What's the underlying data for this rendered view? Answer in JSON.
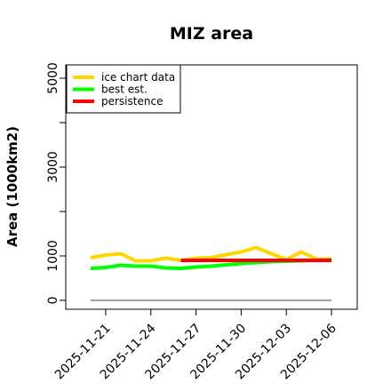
{
  "chart_data": {
    "type": "line",
    "title": "MIZ area",
    "xlabel": "",
    "ylabel": "Area (1000km2)",
    "x": [
      "2025-11-20",
      "2025-11-21",
      "2025-11-22",
      "2025-11-23",
      "2025-11-24",
      "2025-11-25",
      "2025-11-26",
      "2025-11-27",
      "2025-11-28",
      "2025-11-29",
      "2025-11-30",
      "2025-12-01",
      "2025-12-02",
      "2025-12-03",
      "2025-12-04",
      "2025-12-05",
      "2025-12-06"
    ],
    "series": [
      {
        "name": "ice chart data",
        "color": "#FFD700",
        "values": [
          960,
          1020,
          1050,
          890,
          890,
          950,
          900,
          950,
          960,
          1030,
          1090,
          1190,
          1050,
          920,
          1090,
          930,
          930
        ]
      },
      {
        "name": "best est.",
        "color": "#00FF00",
        "values": [
          720,
          740,
          790,
          770,
          770,
          730,
          720,
          750,
          770,
          800,
          830,
          850,
          870,
          880,
          890,
          900,
          910
        ]
      },
      {
        "name": "persistence",
        "color": "#FF0000",
        "values": [
          null,
          null,
          null,
          null,
          null,
          null,
          900,
          900,
          900,
          900,
          900,
          900,
          900,
          900,
          900,
          900,
          900
        ]
      },
      {
        "name": "",
        "color": "#808080",
        "values": [
          0,
          0,
          0,
          0,
          0,
          0,
          0,
          0,
          0,
          0,
          0,
          0,
          0,
          0,
          0,
          0,
          0
        ]
      }
    ],
    "xticks": [
      "2025-11-21",
      "2025-11-24",
      "2025-11-27",
      "2025-11-30",
      "2025-12-03",
      "2025-12-06"
    ],
    "yticks": [
      0,
      1000,
      3000,
      5000
    ],
    "ylim": [
      -200,
      5300
    ],
    "legend": "top-left",
    "grid": false
  }
}
